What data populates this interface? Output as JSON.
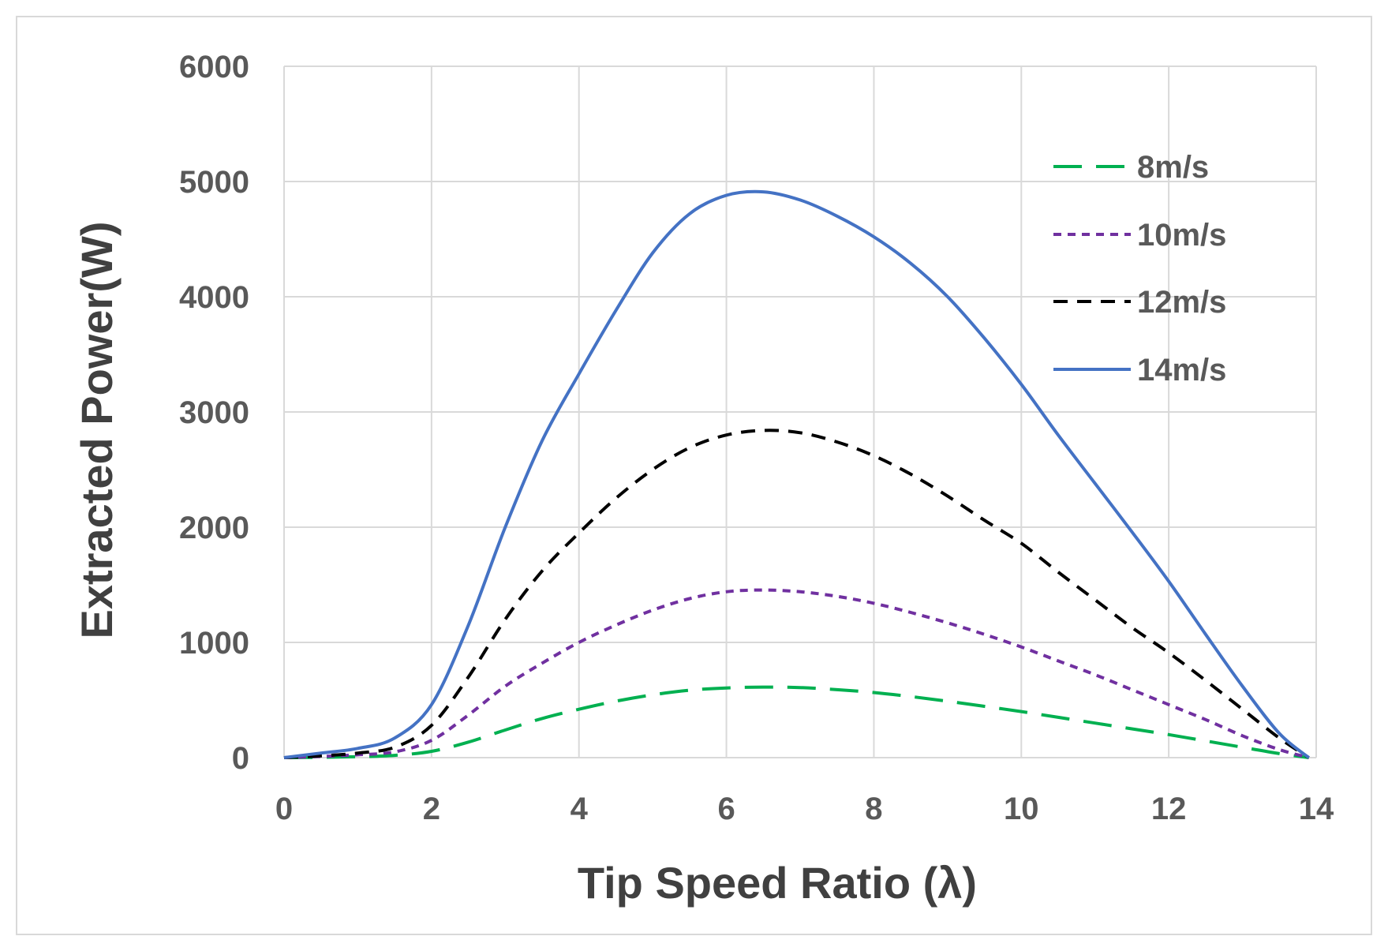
{
  "chart_data": {
    "type": "line",
    "title": "",
    "xlabel": "Tip Speed Ratio (λ)",
    "ylabel": "Extracted Power(W)",
    "xlim": [
      0,
      14
    ],
    "ylim": [
      0,
      6000
    ],
    "xticks": [
      0,
      2,
      4,
      6,
      8,
      10,
      12,
      14
    ],
    "yticks": [
      0,
      1000,
      2000,
      3000,
      4000,
      5000,
      6000
    ],
    "grid": true,
    "legend_position": "top-right",
    "series": [
      {
        "name": "8m/s",
        "color": "#00b050",
        "dash": "long-dash",
        "x": [
          0,
          0.5,
          1,
          1.5,
          2,
          2.5,
          3,
          3.5,
          4,
          4.5,
          5,
          5.5,
          6,
          6.5,
          7,
          7.5,
          8,
          8.5,
          9,
          9.5,
          10,
          10.5,
          11,
          11.5,
          12,
          12.5,
          13,
          13.5,
          13.9
        ],
        "values": [
          0,
          3,
          8,
          20,
          55,
          135,
          240,
          340,
          420,
          490,
          545,
          585,
          605,
          612,
          608,
          590,
          565,
          530,
          490,
          445,
          400,
          350,
          300,
          250,
          200,
          145,
          90,
          35,
          0
        ]
      },
      {
        "name": "10m/s",
        "color": "#7030a0",
        "dash": "short-dash",
        "x": [
          0,
          0.5,
          1,
          1.5,
          2,
          2.5,
          3,
          3.5,
          4,
          4.5,
          5,
          5.5,
          6,
          6.5,
          7,
          7.5,
          8,
          8.5,
          9,
          9.5,
          10,
          10.5,
          11,
          11.5,
          12,
          12.5,
          13,
          13.5,
          13.9
        ],
        "values": [
          0,
          10,
          25,
          50,
          150,
          370,
          620,
          820,
          1000,
          1150,
          1280,
          1380,
          1440,
          1455,
          1440,
          1400,
          1340,
          1260,
          1170,
          1070,
          960,
          840,
          720,
          590,
          460,
          330,
          190,
          70,
          0
        ]
      },
      {
        "name": "12m/s",
        "color": "#000000",
        "dash": "dash",
        "x": [
          0,
          0.5,
          1,
          1.5,
          2,
          2.5,
          3,
          3.5,
          4,
          4.5,
          5,
          5.5,
          6,
          6.5,
          7,
          7.5,
          8,
          8.5,
          9,
          9.5,
          10,
          10.5,
          11,
          11.5,
          12,
          12.5,
          13,
          13.5,
          13.9
        ],
        "values": [
          0,
          15,
          40,
          90,
          280,
          700,
          1200,
          1620,
          1950,
          2250,
          2500,
          2690,
          2800,
          2840,
          2820,
          2740,
          2620,
          2460,
          2270,
          2060,
          1860,
          1610,
          1370,
          1130,
          910,
          670,
          420,
          170,
          0
        ]
      },
      {
        "name": "14m/s",
        "color": "#4472c4",
        "dash": "solid",
        "x": [
          0,
          0.5,
          1,
          1.5,
          2,
          2.5,
          3,
          3.5,
          4,
          4.5,
          5,
          5.5,
          6,
          6.5,
          7,
          7.5,
          8,
          8.5,
          9,
          9.5,
          10,
          10.5,
          11,
          11.5,
          12,
          12.5,
          13,
          13.5,
          13.9
        ],
        "values": [
          0,
          40,
          80,
          170,
          460,
          1150,
          2000,
          2750,
          3330,
          3880,
          4380,
          4720,
          4880,
          4910,
          4840,
          4700,
          4520,
          4290,
          4000,
          3640,
          3240,
          2800,
          2380,
          1960,
          1530,
          1070,
          620,
          210,
          0
        ]
      }
    ]
  }
}
